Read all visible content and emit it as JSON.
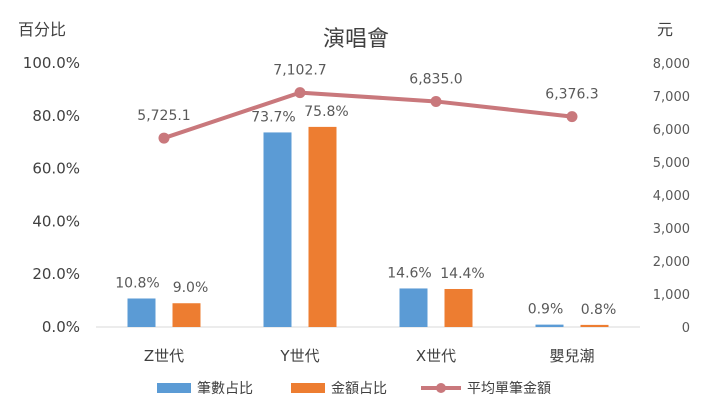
{
  "chart_data": {
    "type": "bar",
    "title": "演唱會",
    "ylabel": "百分比",
    "y2label": "元",
    "categories": [
      "Z世代",
      "Y世代",
      "X世代",
      "嬰兒潮"
    ],
    "ylim": [
      0,
      100
    ],
    "y2lim": [
      0,
      8000
    ],
    "y_ticks": [
      "0.0%",
      "20.0%",
      "40.0%",
      "60.0%",
      "80.0%",
      "100.0%"
    ],
    "y2_ticks": [
      "0",
      "1,000",
      "2,000",
      "3,000",
      "4,000",
      "5,000",
      "6,000",
      "7,000",
      "8,000"
    ],
    "grid": false,
    "legend_position": "bottom",
    "series": [
      {
        "name": "筆數占比",
        "type": "bar",
        "axis": "left",
        "color": "#5B9BD5",
        "values": [
          10.8,
          73.7,
          14.6,
          0.9
        ],
        "labels": [
          "10.8%",
          "73.7%",
          "14.6%",
          "0.9%"
        ]
      },
      {
        "name": "金額占比",
        "type": "bar",
        "axis": "left",
        "color": "#ED7D31",
        "values": [
          9.0,
          75.8,
          14.4,
          0.8
        ],
        "labels": [
          "9.0%",
          "75.8%",
          "14.4%",
          "0.8%"
        ]
      },
      {
        "name": "平均單筆金額",
        "type": "line",
        "axis": "right",
        "color": "#C9787C",
        "values": [
          5725.1,
          7102.7,
          6835.0,
          6376.3
        ],
        "labels": [
          "5,725.1",
          "7,102.7",
          "6,835.0",
          "6,376.3"
        ]
      }
    ]
  }
}
